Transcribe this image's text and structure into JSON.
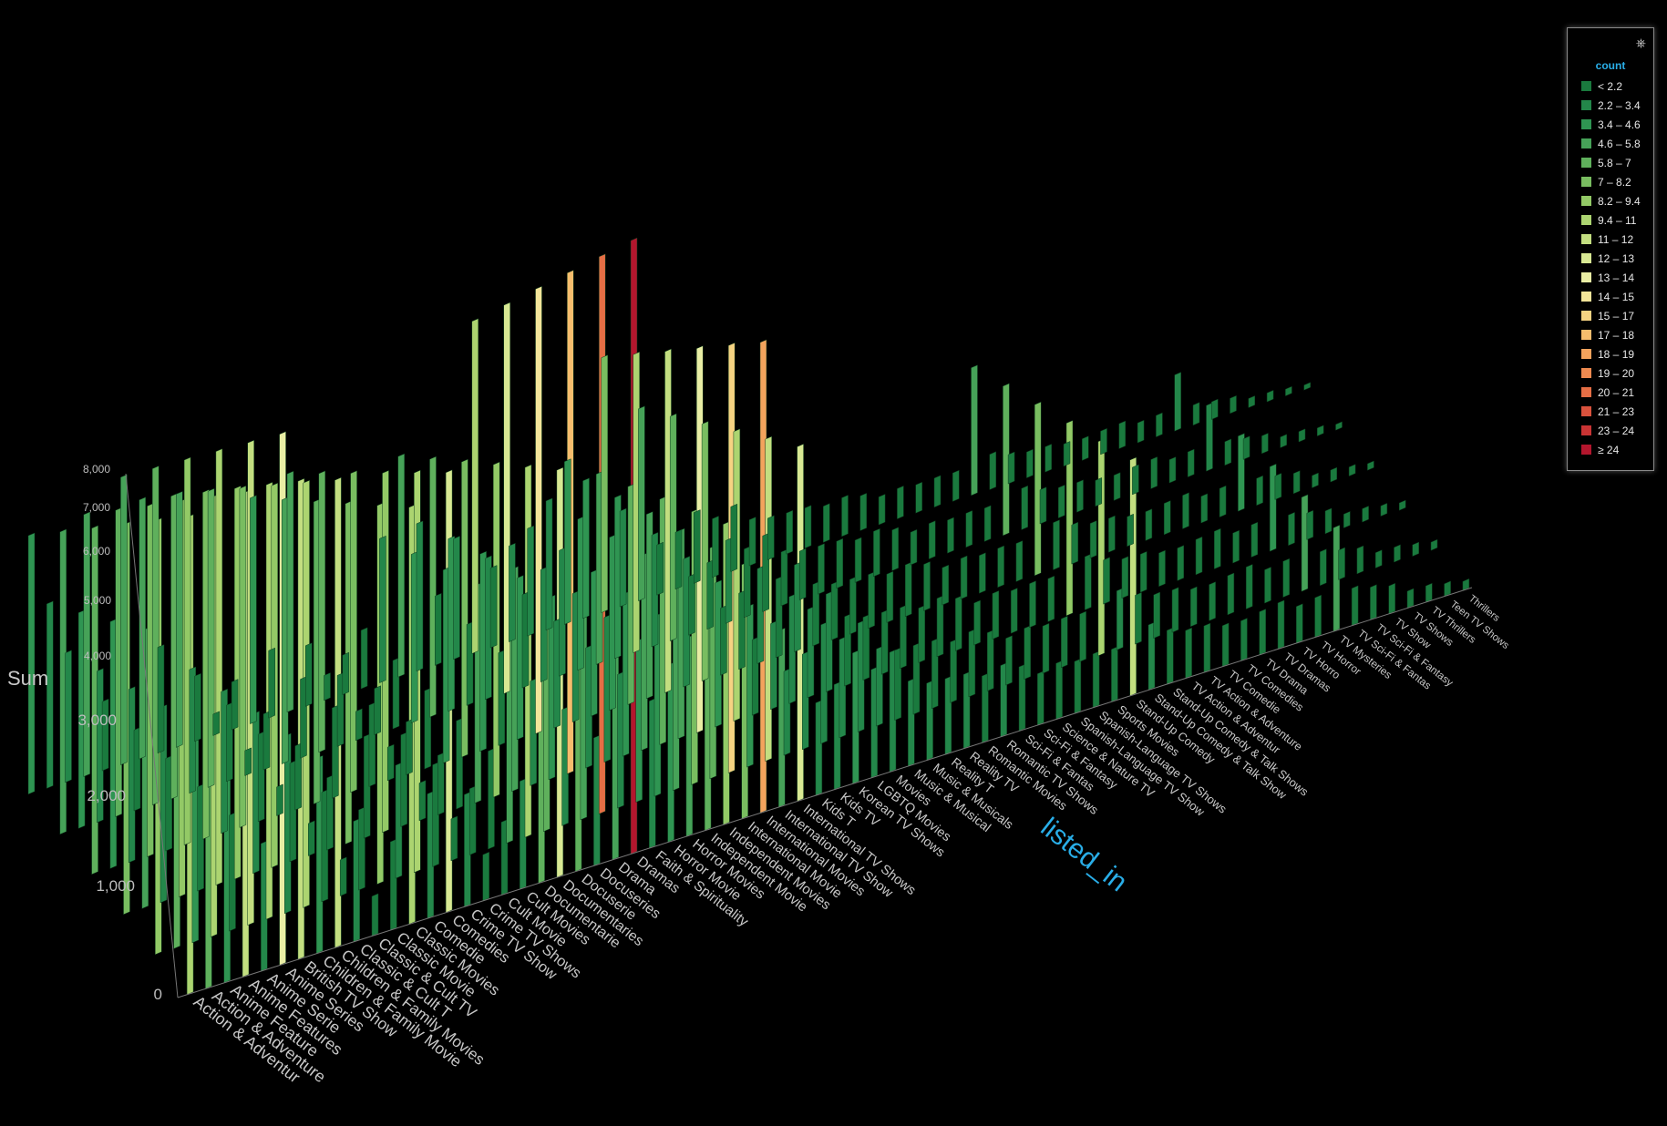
{
  "chart_data": {
    "type": "bar",
    "projection": "3d-perspective",
    "ylabel": "Sum",
    "xlabel": "listed_in",
    "ylim": [
      0,
      8000
    ],
    "y_ticks": [
      "0",
      "1,000",
      "2,000",
      "3,000",
      "4,000",
      "5,000",
      "6,000",
      "7,000",
      "8,000"
    ],
    "categories": [
      "Action & Adventur",
      "Action & Adventure",
      "Anime Feature",
      "Anime Features",
      "Anime Serie",
      "Anime Series",
      "British TV Show",
      "Children & Family Movie",
      "Children & Family Movies",
      "Classic & Cult T",
      "Classic & Cult TV",
      "Classic Movie",
      "Classic Movies",
      "Comedie",
      "Comedies",
      "Crime TV Show",
      "Crime TV Shows",
      "Cult Movie",
      "Cult Movies",
      "Documentarie",
      "Documentaries",
      "Docuserie",
      "Docuseries",
      "Drama",
      "Dramas",
      "Faith & Spirituality",
      "Horror Movie",
      "Horror Movies",
      "Independent Movie",
      "Independent Movies",
      "International Movie",
      "International Movies",
      "International TV Show",
      "International TV Shows",
      "Kids T",
      "Kids TV",
      "Korean TV Shows",
      "LGBTQ Movies",
      "Movies",
      "Music & Musical",
      "Music & Musicals",
      "Reality T",
      "Reality TV",
      "Romantic Movies",
      "Romantic TV Shows",
      "Sci-Fi & Fantas",
      "Sci-Fi & Fantasy",
      "Science & Nature TV",
      "Spanish-Language TV Show",
      "Spanish-Language TV Shows",
      "Sports Movies",
      "Stand-Up Comedy",
      "Stand-Up Comedy & Talk Show",
      "Stand-Up Comedy & Talk Shows",
      "TV Action & Adventur",
      "TV Action & Adventure",
      "TV Comedie",
      "TV Comedies",
      "TV Drama",
      "TV Dramas",
      "TV Horro",
      "TV Horror",
      "TV Mysteries",
      "TV Sci-Fi & Fantas",
      "TV Sci-Fi & Fantasy",
      "TV Show",
      "TV Shows",
      "TV Thrillers",
      "Teen TV Shows",
      "Thrillers"
    ],
    "values": [
      4300,
      3100,
      2200,
      4500,
      1200,
      5050,
      4600,
      1900,
      4600,
      1200,
      400,
      900,
      4300,
      1300,
      4650,
      1200,
      500,
      800,
      1200,
      3000,
      4650,
      3150,
      1500,
      2650,
      7400,
      1800,
      2200,
      2500,
      3050,
      3900,
      3350,
      6300,
      2400,
      4900,
      1300,
      1500,
      1900,
      1600,
      1800,
      1300,
      1200,
      1200,
      1200,
      1100,
      1200,
      1100,
      900,
      1000,
      950,
      1000,
      1000,
      4600,
      1300,
      1100,
      1000,
      1000,
      900,
      900,
      1000,
      1100,
      900,
      1000,
      2700,
      1000,
      900,
      800,
      500,
      500,
      400,
      300
    ],
    "color_metric": "count",
    "legend": {
      "title": "count",
      "placement": "top-right",
      "bins": [
        {
          "label": "< 2.2",
          "color": "#1a7a3e"
        },
        {
          "label": "2.2 – 3.4",
          "color": "#23874a"
        },
        {
          "label": "3.4 – 4.6",
          "color": "#2f9552"
        },
        {
          "label": "4.6 – 5.8",
          "color": "#46a258"
        },
        {
          "label": "5.8 – 7",
          "color": "#5fb05c"
        },
        {
          "label": "7 – 8.2",
          "color": "#79bd60"
        },
        {
          "label": "8.2 – 9.4",
          "color": "#93c966"
        },
        {
          "label": "9.4 – 11",
          "color": "#acd470"
        },
        {
          "label": "11 – 12",
          "color": "#c3de80"
        },
        {
          "label": "12 – 13",
          "color": "#d8e893"
        },
        {
          "label": "13 – 14",
          "color": "#e9eda4"
        },
        {
          "label": "14 – 15",
          "color": "#f3e59a"
        },
        {
          "label": "15 – 17",
          "color": "#f6d382"
        },
        {
          "label": "17 – 18",
          "color": "#f6bd6d"
        },
        {
          "label": "18 – 19",
          "color": "#f3a35d"
        },
        {
          "label": "19 – 20",
          "color": "#ee8a50"
        },
        {
          "label": "20 – 21",
          "color": "#e56e45"
        },
        {
          "label": "21 – 23",
          "color": "#d9523d"
        },
        {
          "label": "23 – 24",
          "color": "#c93434"
        },
        {
          "label": "≥ 24",
          "color": "#b3162d"
        }
      ]
    }
  }
}
